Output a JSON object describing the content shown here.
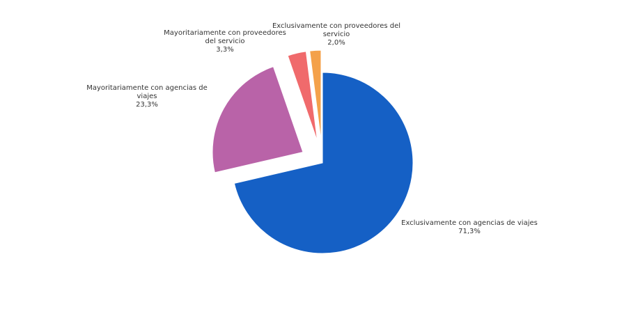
{
  "chart_data": {
    "type": "pie",
    "categories": [
      "Exclusivamente con agencias de viajes",
      "Mayoritariamente con agencias de viajes",
      "Mayoritariamente con proveedores del servicio",
      "Exclusivamente con proveedores del servicio"
    ],
    "values": [
      71.3,
      23.3,
      3.3,
      2.0
    ],
    "value_labels": [
      "71,3%",
      "23,3%",
      "3,3%",
      "2,0%"
    ],
    "colors": [
      "#1560c5",
      "#b963a8",
      "#f06a6c",
      "#f4a14a"
    ]
  }
}
